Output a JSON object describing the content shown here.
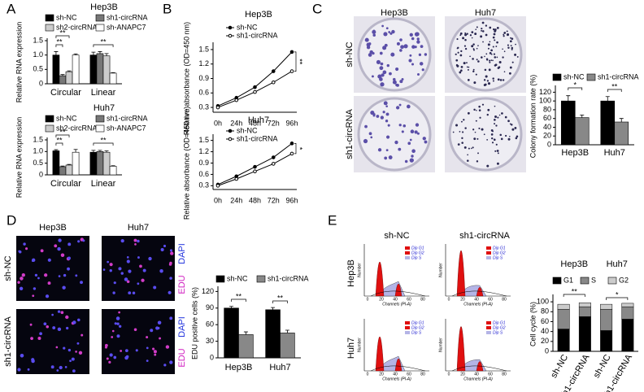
{
  "figure": {
    "panels": [
      "A",
      "B",
      "C",
      "D",
      "E"
    ],
    "colony": {
      "columns": [
        "Hep3B",
        "Huh7"
      ],
      "rows": [
        "sh-NC",
        "sh1-circRNA"
      ]
    },
    "edu": {
      "columns": [
        "Hep3B",
        "Huh7"
      ],
      "rows": [
        "sh-NC",
        "sh1-circRNA"
      ],
      "stains": [
        "DAPI",
        "EDU"
      ]
    },
    "flow": {
      "columns": [
        "sh-NC",
        "sh1-circRNA"
      ],
      "rows": [
        "Hep3B",
        "Huh7"
      ],
      "legend": [
        "Dip G1",
        "Dip G2",
        "Dip S"
      ],
      "xlabel": "Channels (PI-A)",
      "ylabel": "Number",
      "xticks": [
        0,
        20,
        40,
        60,
        80
      ]
    }
  },
  "chart_data": [
    {
      "type": "bar",
      "title": "Hep3B",
      "ylabel": "Relative RNA expression",
      "categories": [
        "Circular",
        "Linear"
      ],
      "series": [
        {
          "name": "sh-NC",
          "color": "#000000",
          "values": [
            1.0,
            1.0
          ],
          "errors": [
            0.12,
            0.1
          ]
        },
        {
          "name": "sh1-circRNA",
          "color": "#777777",
          "values": [
            0.28,
            1.05
          ],
          "errors": [
            0.04,
            0.07
          ]
        },
        {
          "name": "sh2-circRNA",
          "color": "#cccccc",
          "values": [
            0.42,
            0.97
          ],
          "errors": [
            0.03,
            0.08
          ]
        },
        {
          "name": "sh-ANAPC7",
          "color": "#ffffff",
          "values": [
            1.0,
            0.37
          ],
          "errors": [
            0.04,
            0.02
          ]
        }
      ],
      "ylim": [
        0,
        1.5
      ],
      "yticks": [
        0,
        0.5,
        {
          "value": 1,
          "label": "1.0"
        },
        1.5
      ],
      "annotations": [
        "**",
        "**",
        "**"
      ]
    },
    {
      "type": "bar",
      "title": "Huh7",
      "ylabel": "Relative RNA expression",
      "categories": [
        "Circular",
        "Linear"
      ],
      "series": [
        {
          "name": "sh-NC",
          "color": "#000000",
          "values": [
            1.03,
            0.97
          ],
          "errors": [
            0.05,
            0.08
          ]
        },
        {
          "name": "sh1-circRNA",
          "color": "#777777",
          "values": [
            0.35,
            1.0
          ],
          "errors": [
            0.03,
            0.05
          ]
        },
        {
          "name": "sh2-circRNA",
          "color": "#cccccc",
          "values": [
            0.42,
            0.97
          ],
          "errors": [
            0.03,
            0.06
          ]
        },
        {
          "name": "sh-ANAPC7",
          "color": "#ffffff",
          "values": [
            0.97,
            0.37
          ],
          "errors": [
            0.12,
            0.02
          ]
        }
      ],
      "ylim": [
        0,
        1.5
      ],
      "yticks": [
        0,
        0.5,
        {
          "value": 1,
          "label": "1.0"
        },
        1.5
      ],
      "annotations": [
        "**",
        "**",
        "**"
      ]
    },
    {
      "type": "line",
      "title": "Hep3B",
      "ylabel": "Relative absorbance (OD=450 nm)",
      "categories": [
        "0h",
        "24h",
        "48h",
        "72h",
        "96h"
      ],
      "series": [
        {
          "name": "sh-NC",
          "color": "#000000",
          "values": [
            0.33,
            0.5,
            0.72,
            1.05,
            1.45
          ]
        },
        {
          "name": "sh1-circRNA",
          "color": "#000000",
          "values": [
            0.3,
            0.45,
            0.62,
            0.82,
            1.05
          ]
        }
      ],
      "ylim": [
        0.2,
        1.6
      ],
      "yticks": [
        0.3,
        0.6,
        0.9,
        1.2,
        1.5
      ],
      "annotations": [
        "**"
      ]
    },
    {
      "type": "line",
      "title": "Huh7",
      "ylabel": "Relative absorbance (OD=450 nm)",
      "categories": [
        "0h",
        "24h",
        "48h",
        "72h",
        "96h"
      ],
      "series": [
        {
          "name": "sh-NC",
          "color": "#000000",
          "values": [
            0.33,
            0.55,
            0.8,
            1.05,
            1.42
          ]
        },
        {
          "name": "sh1-circRNA",
          "color": "#000000",
          "values": [
            0.3,
            0.48,
            0.68,
            0.88,
            1.15
          ]
        }
      ],
      "ylim": [
        0.2,
        1.6
      ],
      "yticks": [
        0.3,
        0.6,
        0.9,
        1.2,
        1.5
      ],
      "annotations": [
        "*"
      ]
    },
    {
      "type": "bar",
      "ylabel": "Colony formation rate (%)",
      "categories": [
        "Hep3B",
        "Huh7"
      ],
      "series": [
        {
          "name": "sh-NC",
          "color": "#000000",
          "values": [
            100,
            100
          ],
          "errors": [
            12,
            10
          ]
        },
        {
          "name": "sh1-circRNA",
          "color": "#888888",
          "values": [
            62,
            52
          ],
          "errors": [
            6,
            8
          ]
        }
      ],
      "ylim": [
        0,
        130
      ],
      "yticks": [
        0,
        20,
        40,
        60,
        80,
        100,
        120
      ],
      "annotations": [
        "*",
        "**"
      ]
    },
    {
      "type": "bar",
      "ylabel": "EDU positive cells (%)",
      "categories": [
        "Hep3B",
        "Huh7"
      ],
      "series": [
        {
          "name": "sh-NC",
          "color": "#000000",
          "values": [
            90,
            87
          ],
          "errors": [
            3,
            4
          ]
        },
        {
          "name": "sh1-circRNA",
          "color": "#888888",
          "values": [
            42,
            45
          ],
          "errors": [
            5,
            5
          ]
        }
      ],
      "ylim": [
        0,
        125
      ],
      "yticks": [
        0,
        30,
        60,
        90,
        120
      ],
      "annotations": [
        "**",
        "**"
      ]
    },
    {
      "type": "stacked_bar",
      "ylabel": "Cell cycle (%)",
      "groups": [
        "Hep3B",
        "Huh7"
      ],
      "categories": [
        "sh-NC",
        "sh1-circRNA",
        "sh-NC",
        "sh1-circRNA"
      ],
      "series": [
        {
          "name": "G1",
          "color": "#000000",
          "values": [
            45,
            70,
            42,
            65
          ]
        },
        {
          "name": "S",
          "color": "#888888",
          "values": [
            40,
            20,
            43,
            25
          ]
        },
        {
          "name": "G2",
          "color": "#cccccc",
          "values": [
            10,
            8,
            10,
            7
          ]
        }
      ],
      "ylim": [
        0,
        110
      ],
      "yticks": [
        0,
        20,
        40,
        60,
        80,
        100
      ],
      "annotations": [
        "**",
        "*"
      ]
    }
  ]
}
